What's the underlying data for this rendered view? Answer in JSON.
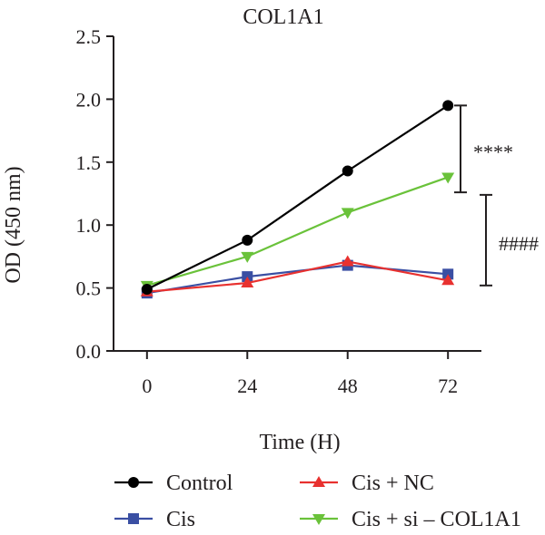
{
  "chart_data": {
    "type": "line",
    "title": "COL1A1",
    "xlabel": "Time (H)",
    "ylabel": "OD (450 nm)",
    "x": [
      0,
      24,
      48,
      72
    ],
    "x_tick_labels": [
      "0",
      "24",
      "48",
      "72"
    ],
    "xlim": [
      -8,
      80
    ],
    "ylim": [
      0,
      2.5
    ],
    "y_ticks": [
      0,
      0.5,
      1.0,
      1.5,
      2.0,
      2.5
    ],
    "y_tick_labels": [
      "0.0",
      "0.5",
      "1.0",
      "1.5",
      "2.0",
      "2.5"
    ],
    "grid": false,
    "legend_position": "bottom",
    "series": [
      {
        "name": "Control",
        "values": [
          0.49,
          0.88,
          1.43,
          1.95
        ],
        "color": "#000000",
        "marker": "circle"
      },
      {
        "name": "Cis",
        "values": [
          0.46,
          0.59,
          0.68,
          0.61
        ],
        "color": "#3a4fa3",
        "marker": "square"
      },
      {
        "name": "Cis + NC",
        "values": [
          0.47,
          0.54,
          0.71,
          0.56
        ],
        "color": "#e8312f",
        "marker": "triangle-up"
      },
      {
        "name": "Cis + si – COL1A1",
        "values": [
          0.52,
          0.75,
          1.1,
          1.38
        ],
        "color": "#6ac23a",
        "marker": "triangle-down"
      }
    ],
    "annotations": [
      {
        "text": "****",
        "from": 1.95,
        "to": 1.26
      },
      {
        "text": "####",
        "from": 1.24,
        "to": 0.52
      }
    ]
  }
}
